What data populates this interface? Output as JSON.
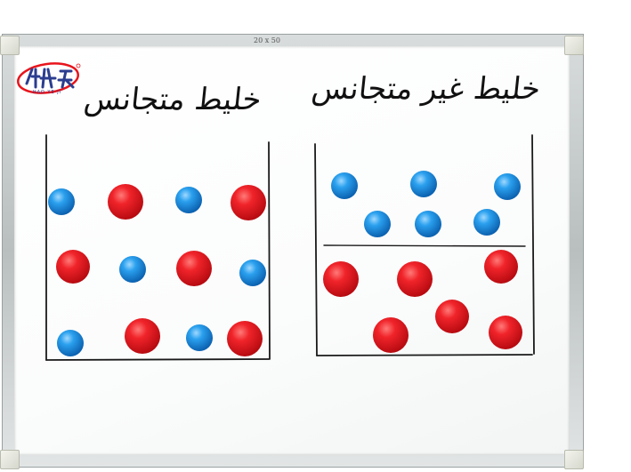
{
  "board": {
    "size_label": "20 x 50",
    "logo_sub": "HAO YE JI",
    "heading_left": "خليط متجانس",
    "heading_right": "خليط غير متجانس",
    "colors": {
      "red": "#e8141c",
      "blue": "#1e8fe0",
      "marker": "#1a1a1a"
    }
  }
}
